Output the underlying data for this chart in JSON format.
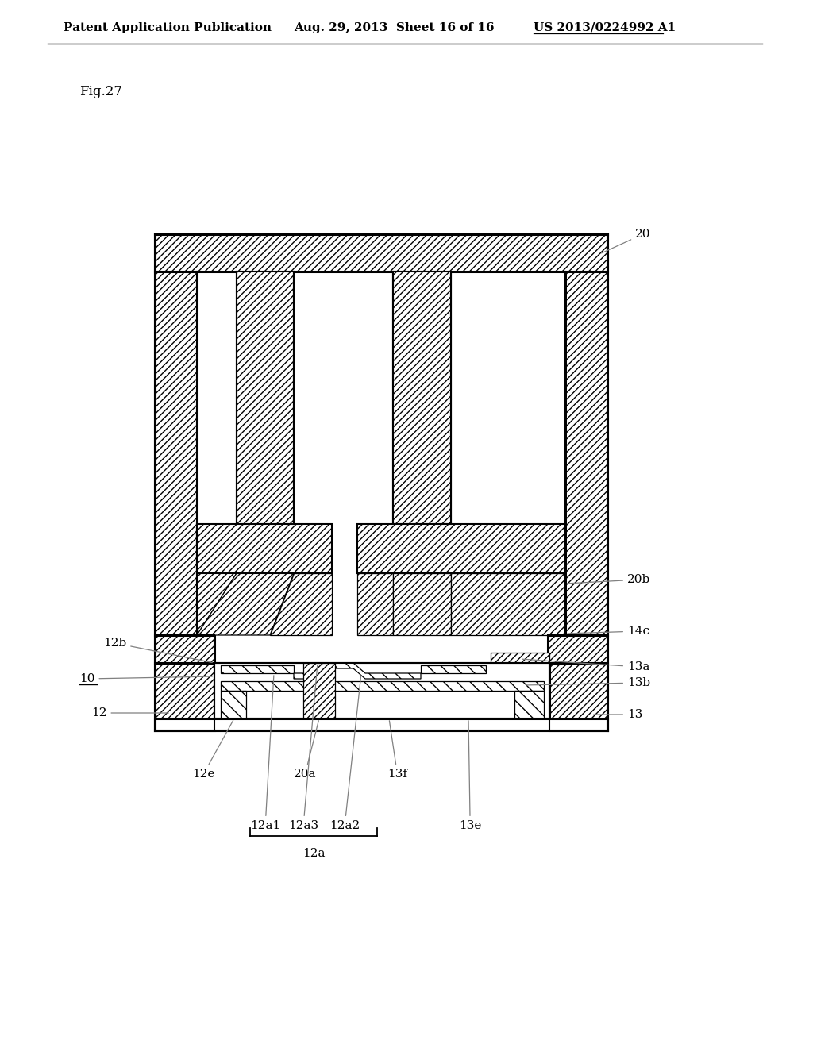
{
  "title_left": "Patent Application Publication",
  "title_mid": "Aug. 29, 2013  Sheet 16 of 16",
  "title_right": "US 2013/0224992 A1",
  "fig_label": "Fig.27",
  "bg": "#ffffff",
  "lc": "#000000",
  "tc": "#000000",
  "header_fs": 11,
  "fig_fs": 12,
  "ann_fs": 11,
  "lw_thick": 2.2,
  "lw_med": 1.5,
  "lw_thin": 0.9
}
